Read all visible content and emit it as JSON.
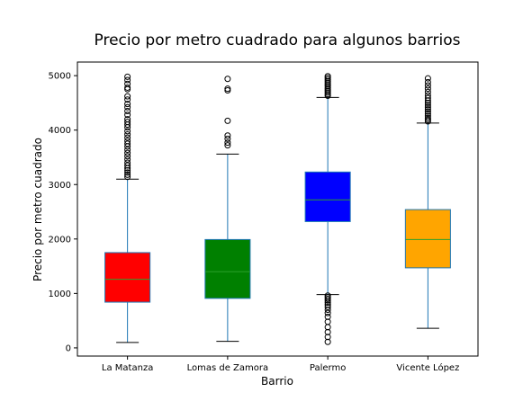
{
  "chart_data": {
    "type": "box",
    "title": "Precio por metro cuadrado para algunos barrios",
    "xlabel": "Barrio",
    "ylabel": "Precio por metro cuadrado",
    "ylim": [
      -150,
      5250
    ],
    "yticks": [
      0,
      1000,
      2000,
      3000,
      4000,
      5000
    ],
    "grid": false,
    "categories": [
      "La Matanza",
      "Lomas de Zamora",
      "Palermo",
      "Vicente López"
    ],
    "series": [
      {
        "category": "La Matanza",
        "color": "#ff0000",
        "whisker_low": 100,
        "q1": 840,
        "median": 1260,
        "q3": 1750,
        "whisker_high": 3100,
        "outliers": [
          3140,
          3180,
          3220,
          3260,
          3300,
          3350,
          3400,
          3460,
          3520,
          3580,
          3640,
          3700,
          3750,
          3800,
          3860,
          3920,
          3980,
          4050,
          4100,
          4150,
          4200,
          4280,
          4350,
          4420,
          4480,
          4560,
          4620,
          4750,
          4780,
          4850,
          4920,
          4980
        ]
      },
      {
        "category": "Lomas de Zamora",
        "color": "#008000",
        "whisker_low": 120,
        "q1": 910,
        "median": 1400,
        "q3": 1990,
        "whisker_high": 3560,
        "outliers": [
          3720,
          3770,
          3840,
          3900,
          4170,
          4730,
          4760,
          4940
        ]
      },
      {
        "category": "Palermo",
        "color": "#0000ff",
        "whisker_low": 980,
        "q1": 2320,
        "median": 2720,
        "q3": 3230,
        "whisker_high": 4600,
        "outliers": [
          110,
          200,
          290,
          380,
          480,
          570,
          640,
          700,
          750,
          790,
          830,
          870,
          900,
          930,
          960,
          4630,
          4660,
          4690,
          4720,
          4750,
          4780,
          4810,
          4840,
          4870,
          4900,
          4930,
          4960,
          4990
        ]
      },
      {
        "category": "Vicente López",
        "color": "#ffa500",
        "whisker_low": 360,
        "q1": 1470,
        "median": 1990,
        "q3": 2540,
        "whisker_high": 4130,
        "outliers": [
          4160,
          4190,
          4220,
          4260,
          4300,
          4340,
          4380,
          4420,
          4460,
          4500,
          4540,
          4590,
          4640,
          4700,
          4760,
          4820,
          4880,
          4950
        ]
      }
    ]
  }
}
